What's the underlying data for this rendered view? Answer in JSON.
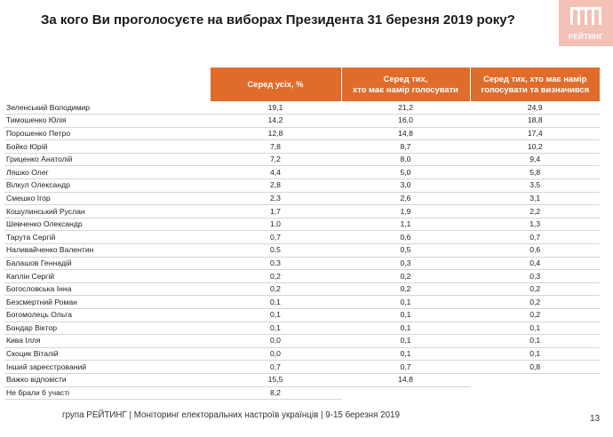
{
  "title": "За кого Ви проголосуєте на виборах Президента 31 березня 2019 року?",
  "logo": {
    "text": "РЕЙТИНГ",
    "mark_color": "#ffffff",
    "bg_color": "#f3c1b6"
  },
  "table": {
    "header_color": "#e06c2c",
    "headers": {
      "all": "Серед усіх, %",
      "intend_line1": "Серед тих,",
      "intend_line2": "хто має намір голосувати",
      "decided_line1": "Серед тих, хто має намір",
      "decided_line2": "голосувати та визначився"
    },
    "rows": [
      {
        "name": "Зеленський Володимир",
        "all": "19,1",
        "intend": "21,2",
        "decided": "24,9"
      },
      {
        "name": "Тимошенко Юлія",
        "all": "14,2",
        "intend": "16,0",
        "decided": "18,8"
      },
      {
        "name": "Порошенко Петро",
        "all": "12,8",
        "intend": "14,8",
        "decided": "17,4"
      },
      {
        "name": "Бойко Юрій",
        "all": "7,8",
        "intend": "8,7",
        "decided": "10,2"
      },
      {
        "name": "Гриценко Анатолій",
        "all": "7,2",
        "intend": "8,0",
        "decided": "9,4"
      },
      {
        "name": "Ляшко Олег",
        "all": "4,4",
        "intend": "5,0",
        "decided": "5,8"
      },
      {
        "name": "Вілкул Олександр",
        "all": "2,8",
        "intend": "3,0",
        "decided": "3,5"
      },
      {
        "name": "Смешко Ігор",
        "all": "2,3",
        "intend": "2,6",
        "decided": "3,1"
      },
      {
        "name": "Кошулинський Руслан",
        "all": "1,7",
        "intend": "1,9",
        "decided": "2,2"
      },
      {
        "name": "Шевченко Олександр",
        "all": "1,0",
        "intend": "1,1",
        "decided": "1,3"
      },
      {
        "name": "Тарута Сергій",
        "all": "0,7",
        "intend": "0,6",
        "decided": "0,7"
      },
      {
        "name": "Наливайченко Валентин",
        "all": "0,5",
        "intend": "0,5",
        "decided": "0,6"
      },
      {
        "name": "Балашов Геннадій",
        "all": "0,3",
        "intend": "0,3",
        "decided": "0,4"
      },
      {
        "name": "Каплін Сергій",
        "all": "0,2",
        "intend": "0,2",
        "decided": "0,3"
      },
      {
        "name": "Богословська Інна",
        "all": "0,2",
        "intend": "0,2",
        "decided": "0,2"
      },
      {
        "name": "Безсмертний Роман",
        "all": "0,1",
        "intend": "0,1",
        "decided": "0,2"
      },
      {
        "name": "Богомолець Ольга",
        "all": "0,1",
        "intend": "0,1",
        "decided": "0,2"
      },
      {
        "name": "Бондар Віктор",
        "all": "0,1",
        "intend": "0,1",
        "decided": "0,1"
      },
      {
        "name": "Кива Ілля",
        "all": "0,0",
        "intend": "0,1",
        "decided": "0,1"
      },
      {
        "name": "Скоцик Віталій",
        "all": "0,0",
        "intend": "0,1",
        "decided": "0,1"
      },
      {
        "name": "Інший зареєстрований",
        "all": "0,7",
        "intend": "0,7",
        "decided": "0,8"
      },
      {
        "name": "Важко відповісти",
        "all": "15,5",
        "intend": "14,8",
        "decided": ""
      },
      {
        "name": "Не брали б участі",
        "all": "8,2",
        "intend": "",
        "decided": ""
      }
    ]
  },
  "footer": "група РЕЙТИНГ | Моніторинг електоральних настроїв українців  | 9-15 березня 2019",
  "page_number": "13"
}
